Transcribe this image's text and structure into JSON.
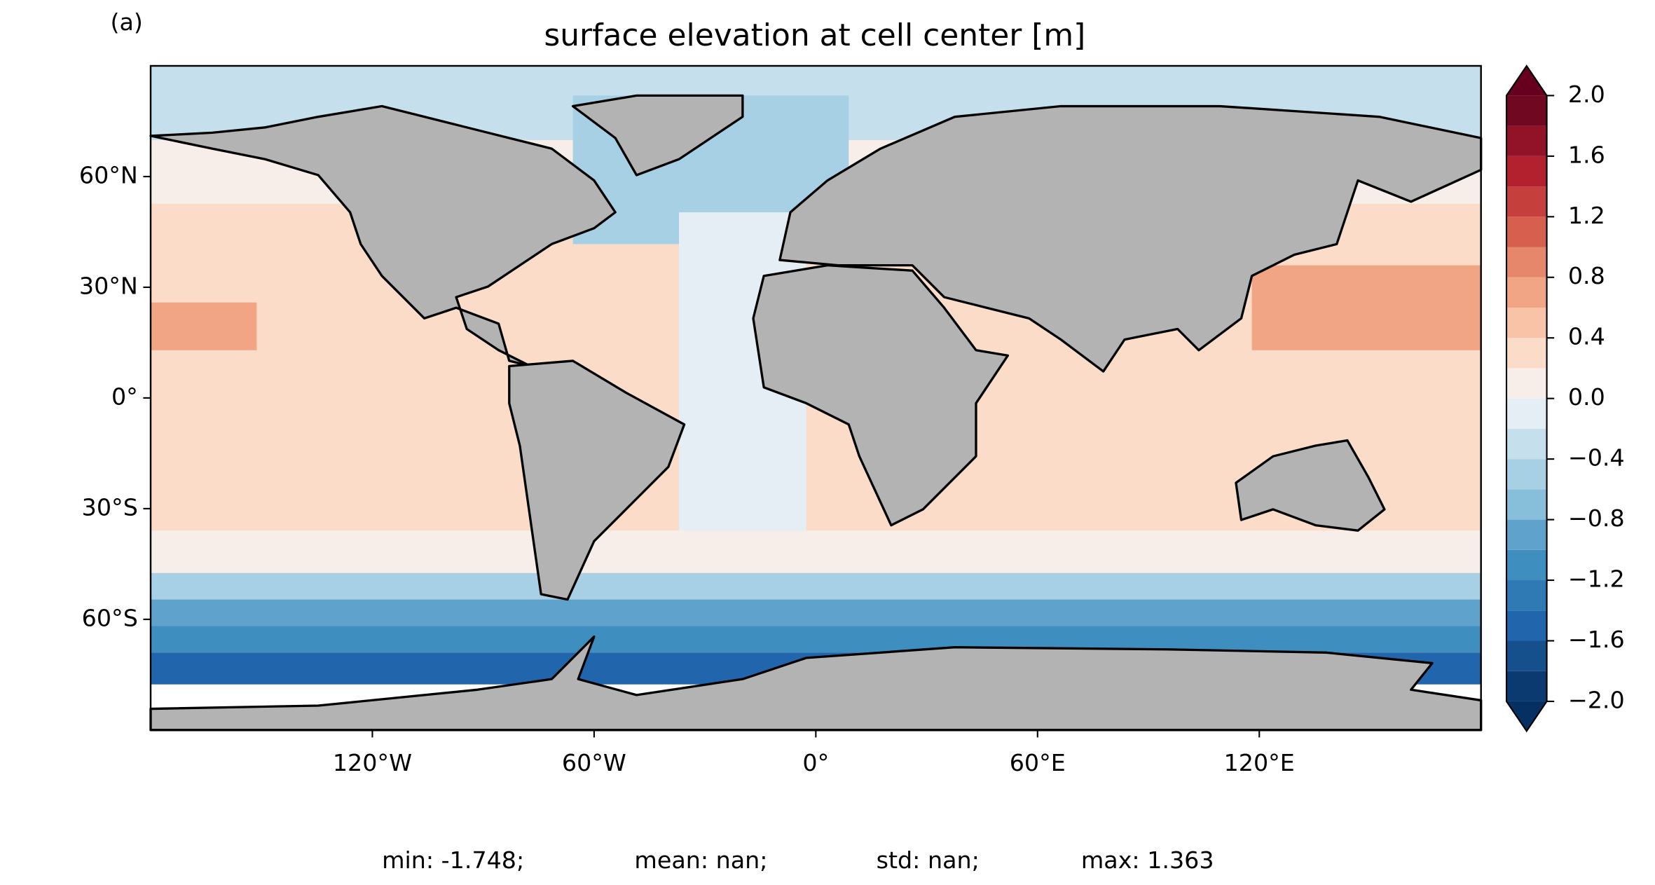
{
  "chart_data": {
    "type": "contour-map",
    "panel_label": "(a)",
    "title": "surface elevation at cell center [m]",
    "xlim": [
      -180,
      180
    ],
    "ylim": [
      -90,
      90
    ],
    "xticks": [
      {
        "value": -120,
        "label": "120°W"
      },
      {
        "value": -60,
        "label": "60°W"
      },
      {
        "value": 0,
        "label": "0°"
      },
      {
        "value": 60,
        "label": "60°E"
      },
      {
        "value": 120,
        "label": "120°E"
      }
    ],
    "yticks": [
      {
        "value": 60,
        "label": "60°N"
      },
      {
        "value": 30,
        "label": "30°N"
      },
      {
        "value": 0,
        "label": "0°"
      },
      {
        "value": -30,
        "label": "30°S"
      },
      {
        "value": -60,
        "label": "60°S"
      }
    ],
    "colorbar": {
      "levels": [
        -2.0,
        -1.8,
        -1.6,
        -1.4,
        -1.2,
        -1.0,
        -0.8,
        -0.6,
        -0.4,
        -0.2,
        0.0,
        0.2,
        0.4,
        0.6,
        0.8,
        1.0,
        1.2,
        1.4,
        1.6,
        1.8,
        2.0
      ],
      "colors": [
        "#0a3a70",
        "#15508d",
        "#2166ac",
        "#2f79b5",
        "#3f8ec0",
        "#5fa2cb",
        "#87beda",
        "#a7d0e4",
        "#c6dfed",
        "#e4eef4",
        "#f8eee9",
        "#fbdcc9",
        "#f8c3a6",
        "#f2a585",
        "#e6866a",
        "#d6604d",
        "#c53f3d",
        "#b3212f",
        "#921328",
        "#700822"
      ],
      "under_color": "#053061",
      "over_color": "#67001f",
      "ticks": [
        {
          "value": -2.0,
          "label": "−2.0"
        },
        {
          "value": -1.6,
          "label": "−1.6"
        },
        {
          "value": -1.2,
          "label": "−1.2"
        },
        {
          "value": -0.8,
          "label": "−0.8"
        },
        {
          "value": -0.4,
          "label": "−0.4"
        },
        {
          "value": 0.0,
          "label": "0.0"
        },
        {
          "value": 0.4,
          "label": "0.4"
        },
        {
          "value": 0.8,
          "label": "0.8"
        },
        {
          "value": 1.2,
          "label": "1.2"
        },
        {
          "value": 1.6,
          "label": "1.6"
        },
        {
          "value": 2.0,
          "label": "2.0"
        }
      ]
    },
    "stats": [
      "min: -1.748;",
      "mean: nan;",
      "std: nan;",
      "max: 1.363"
    ]
  }
}
